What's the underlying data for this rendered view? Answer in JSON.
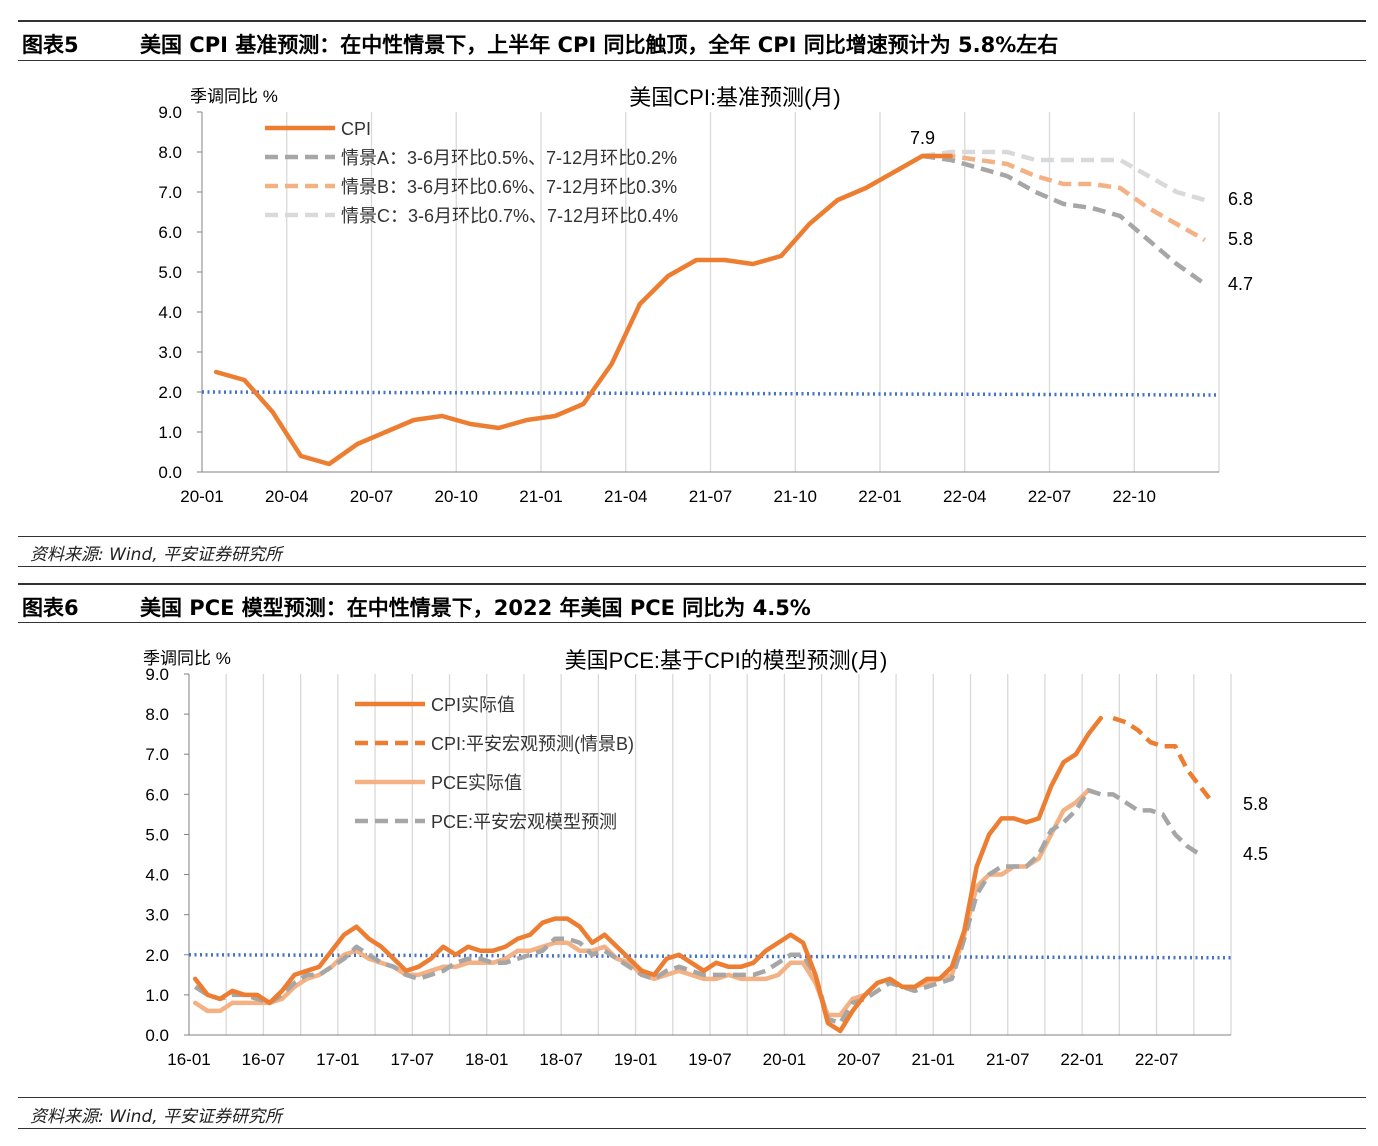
{
  "figure1": {
    "number": "图表5",
    "caption": "美国 CPI 基准预测：在中性情景下，上半年 CPI 同比触顶，全年 CPI 同比增速预计为 5.8%左右",
    "source": "资料来源: Wind, 平安证券研究所"
  },
  "figure2": {
    "number": "图表6",
    "caption": "美国 PCE 模型预测：在中性情景下，2022 年美国 PCE 同比为 4.5%",
    "source": "资料来源: Wind, 平安证券研究所"
  },
  "colors": {
    "cpi": "#ED7D31",
    "scenarioA": "#A6A6A6",
    "scenarioB": "#F4B183",
    "scenarioC": "#D9D9D9",
    "pce_actual": "#F4B183",
    "pce_model": "#A6A6A6",
    "reference": "#4472C4",
    "grid": "#D9D9D9"
  },
  "chart_data": [
    {
      "type": "line",
      "title": "美国CPI:基准预测(月)",
      "ylabel": "季调同比 %",
      "ylim": [
        0,
        9
      ],
      "yticks": [
        "0.0",
        "1.0",
        "2.0",
        "3.0",
        "4.0",
        "5.0",
        "6.0",
        "7.0",
        "8.0",
        "9.0"
      ],
      "xlabels": [
        "20-01",
        "20-04",
        "20-07",
        "20-10",
        "21-01",
        "21-04",
        "21-07",
        "21-10",
        "22-01",
        "22-04",
        "22-07",
        "22-10"
      ],
      "x_start": "2020-01",
      "x_end": "2022-12",
      "grid": "vertical",
      "legend_position": "top-left",
      "reference_line": 2.0,
      "series": [
        {
          "name": "CPI",
          "style": "solid",
          "color_key": "cpi",
          "x": [
            "2020-01",
            "2020-02",
            "2020-03",
            "2020-04",
            "2020-05",
            "2020-06",
            "2020-07",
            "2020-08",
            "2020-09",
            "2020-10",
            "2020-11",
            "2020-12",
            "2021-01",
            "2021-02",
            "2021-03",
            "2021-04",
            "2021-05",
            "2021-06",
            "2021-07",
            "2021-08",
            "2021-09",
            "2021-10",
            "2021-11",
            "2021-12",
            "2022-01",
            "2022-02",
            "2022-03"
          ],
          "values": [
            2.5,
            2.3,
            1.5,
            0.4,
            0.2,
            0.7,
            1.0,
            1.3,
            1.4,
            1.2,
            1.1,
            1.3,
            1.4,
            1.7,
            2.7,
            4.2,
            4.9,
            5.3,
            5.3,
            5.2,
            5.4,
            6.2,
            6.8,
            7.1,
            7.5,
            7.9,
            7.9
          ]
        },
        {
          "name": "情景A：3-6月环比0.5%、7-12月环比0.2%",
          "style": "dashed",
          "color_key": "scenarioA",
          "x": [
            "2022-02",
            "2022-03",
            "2022-04",
            "2022-05",
            "2022-06",
            "2022-07",
            "2022-08",
            "2022-09",
            "2022-10",
            "2022-11",
            "2022-12"
          ],
          "values": [
            7.9,
            7.8,
            7.6,
            7.4,
            7.0,
            6.7,
            6.6,
            6.4,
            5.8,
            5.2,
            4.7
          ]
        },
        {
          "name": "情景B：3-6月环比0.6%、7-12月环比0.3%",
          "style": "dashed",
          "color_key": "scenarioB",
          "x": [
            "2022-02",
            "2022-03",
            "2022-04",
            "2022-05",
            "2022-06",
            "2022-07",
            "2022-08",
            "2022-09",
            "2022-10",
            "2022-11",
            "2022-12"
          ],
          "values": [
            7.9,
            7.9,
            7.8,
            7.7,
            7.4,
            7.2,
            7.2,
            7.1,
            6.6,
            6.2,
            5.8
          ]
        },
        {
          "name": "情景C：3-6月环比0.7%、7-12月环比0.4%",
          "style": "dashed",
          "color_key": "scenarioC",
          "x": [
            "2022-02",
            "2022-03",
            "2022-04",
            "2022-05",
            "2022-06",
            "2022-07",
            "2022-08",
            "2022-09",
            "2022-10",
            "2022-11",
            "2022-12"
          ],
          "values": [
            7.9,
            8.0,
            8.0,
            8.0,
            7.8,
            7.8,
            7.8,
            7.8,
            7.4,
            7.0,
            6.8
          ]
        }
      ],
      "annotations": [
        "7.9",
        "6.8",
        "5.8",
        "4.7"
      ]
    },
    {
      "type": "line",
      "title": "美国PCE:基于CPI的模型预测(月)",
      "ylabel": "季调同比 %",
      "ylim": [
        0,
        9
      ],
      "yticks": [
        "0.0",
        "1.0",
        "2.0",
        "3.0",
        "4.0",
        "5.0",
        "6.0",
        "7.0",
        "8.0",
        "9.0"
      ],
      "xlabels": [
        "16-01",
        "16-07",
        "17-01",
        "17-07",
        "18-01",
        "18-07",
        "19-01",
        "19-07",
        "20-01",
        "20-07",
        "21-01",
        "21-07",
        "22-01",
        "22-07"
      ],
      "x_start": "2016-01",
      "x_end": "2022-12",
      "grid": "vertical",
      "legend_position": "top-left",
      "reference_line": 2.0,
      "series": [
        {
          "name": "CPI实际值",
          "style": "solid",
          "color_key": "cpi",
          "x_start": "2016-01",
          "values": [
            1.4,
            1.0,
            0.9,
            1.1,
            1.0,
            1.0,
            0.8,
            1.1,
            1.5,
            1.6,
            1.7,
            2.1,
            2.5,
            2.7,
            2.4,
            2.2,
            1.9,
            1.6,
            1.7,
            1.9,
            2.2,
            2.0,
            2.2,
            2.1,
            2.1,
            2.2,
            2.4,
            2.5,
            2.8,
            2.9,
            2.9,
            2.7,
            2.3,
            2.5,
            2.2,
            1.9,
            1.6,
            1.5,
            1.9,
            2.0,
            1.8,
            1.6,
            1.8,
            1.7,
            1.7,
            1.8,
            2.1,
            2.3,
            2.5,
            2.3,
            1.5,
            0.3,
            0.1,
            0.6,
            1.0,
            1.3,
            1.4,
            1.2,
            1.2,
            1.4,
            1.4,
            1.7,
            2.6,
            4.2,
            5.0,
            5.4,
            5.4,
            5.3,
            5.4,
            6.2,
            6.8,
            7.0,
            7.5,
            7.9
          ]
        },
        {
          "name": "CPI:平安宏观预测(情景B)",
          "style": "dashed",
          "color_key": "cpi",
          "x_start": "2022-03",
          "values": [
            7.9,
            7.8,
            7.6,
            7.3,
            7.2,
            7.2,
            6.6,
            6.2,
            5.8
          ]
        },
        {
          "name": "PCE实际值",
          "style": "solid",
          "color_key": "pce_actual",
          "x_start": "2016-01",
          "values": [
            0.8,
            0.6,
            0.6,
            0.8,
            0.8,
            0.8,
            0.8,
            0.9,
            1.2,
            1.4,
            1.5,
            1.7,
            2.0,
            2.1,
            1.9,
            1.8,
            1.7,
            1.5,
            1.5,
            1.6,
            1.7,
            1.7,
            1.8,
            1.8,
            1.8,
            1.9,
            2.1,
            2.1,
            2.2,
            2.3,
            2.3,
            2.1,
            2.1,
            2.2,
            1.9,
            1.8,
            1.5,
            1.4,
            1.5,
            1.6,
            1.5,
            1.4,
            1.4,
            1.5,
            1.4,
            1.4,
            1.4,
            1.5,
            1.8,
            1.8,
            1.3,
            0.5,
            0.5,
            0.9,
            1.0,
            1.3,
            1.4,
            1.2,
            1.2,
            1.3,
            1.4,
            1.5,
            2.5,
            3.7,
            4.0,
            4.0,
            4.2,
            4.2,
            4.4,
            5.0,
            5.6,
            5.8,
            6.1
          ]
        },
        {
          "name": "PCE:平安宏观模型预测",
          "style": "dashed",
          "color_key": "pce_model",
          "x_start": "2016-01",
          "values": [
            1.2,
            1.0,
            0.9,
            1.0,
            1.0,
            0.9,
            0.8,
            1.0,
            1.3,
            1.5,
            1.5,
            1.7,
            1.9,
            2.2,
            2.0,
            1.8,
            1.7,
            1.5,
            1.4,
            1.5,
            1.6,
            1.8,
            1.9,
            1.9,
            1.8,
            1.8,
            1.9,
            2.0,
            2.1,
            2.4,
            2.4,
            2.3,
            2.0,
            2.1,
            1.9,
            1.7,
            1.5,
            1.4,
            1.6,
            1.7,
            1.6,
            1.5,
            1.5,
            1.5,
            1.5,
            1.5,
            1.6,
            1.8,
            2.0,
            2.0,
            1.5,
            0.4,
            0.3,
            0.8,
            0.9,
            1.1,
            1.3,
            1.2,
            1.1,
            1.2,
            1.3,
            1.4,
            2.4,
            3.5,
            4.0,
            4.2,
            4.2,
            4.2,
            4.5,
            5.1,
            5.3,
            5.6,
            6.1,
            6.0,
            6.0,
            5.8,
            5.6,
            5.6,
            5.5,
            5.0,
            4.7,
            4.5
          ]
        }
      ],
      "annotations": [
        "5.8",
        "4.5"
      ]
    }
  ]
}
